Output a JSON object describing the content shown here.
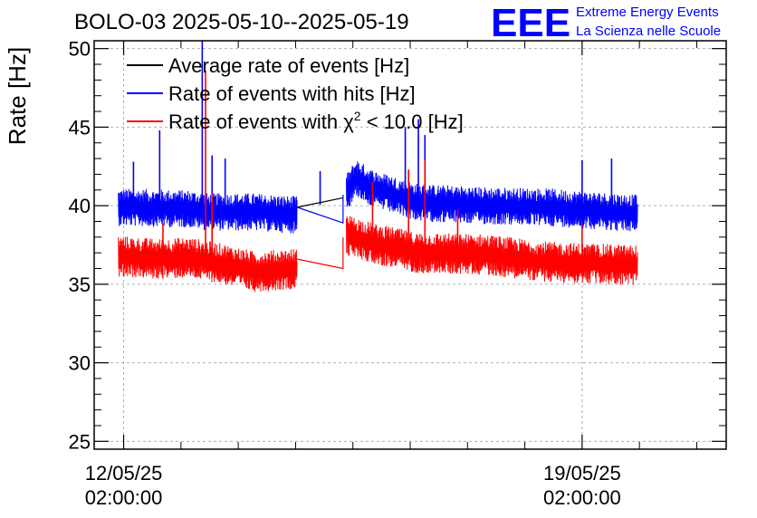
{
  "header": {
    "logo_text": "EEE",
    "org_line1": "Extreme Energy Events",
    "org_line2": "La Scienza nelle Scuole"
  },
  "colors": {
    "average": "#000000",
    "hits": "#0000ff",
    "chi2": "#ff0000",
    "logo": "#0000ff",
    "grid": "#b0b0b0"
  },
  "chart_data": {
    "type": "line",
    "title": "BOLO-03 2025-05-10--2025-05-19",
    "ylabel": "Rate [Hz]",
    "xlabel": "",
    "ylim": [
      24.5,
      50.5
    ],
    "xlim_days": [
      -0.45,
      9.2
    ],
    "yticks": [
      25,
      30,
      35,
      40,
      45,
      50
    ],
    "xticks": [
      {
        "day": 0,
        "line1": "12/05/25",
        "line2": "02:00:00"
      },
      {
        "day": 7,
        "line1": "19/05/25",
        "line2": "02:00:00"
      }
    ],
    "grid": true,
    "legend_position": "top-left",
    "legend": [
      {
        "key": "average",
        "label": "Average rate of events [Hz]"
      },
      {
        "key": "hits",
        "label": "Rate of events with hits [Hz]"
      },
      {
        "key": "chi2",
        "label_prefix": "Rate of events with ",
        "label_symbol": "χ",
        "label_sup": "2",
        "label_suffix": " < 10.0 [Hz]"
      }
    ],
    "data_start_day": -0.08,
    "data_end_day": 7.85,
    "gap_start_day": 2.65,
    "gap_end_day": 3.4,
    "series": [
      {
        "name": "Average rate of events [Hz]",
        "key": "average",
        "gap_path": [
          [
            2.65,
            39.9
          ],
          [
            3.35,
            40.5
          ]
        ]
      },
      {
        "name": "Rate of events with hits [Hz]",
        "key": "hits",
        "baseline": [
          [
            -0.08,
            39.9
          ],
          [
            1.0,
            39.8
          ],
          [
            1.3,
            39.6
          ],
          [
            2.0,
            39.6
          ],
          [
            2.65,
            39.4
          ],
          [
            3.4,
            40.8
          ],
          [
            3.55,
            41.8
          ],
          [
            3.8,
            41.1
          ],
          [
            4.5,
            40.2
          ],
          [
            5.5,
            40.0
          ],
          [
            6.5,
            39.9
          ],
          [
            7.85,
            39.5
          ]
        ],
        "noise": 1.2,
        "gap_path": [
          [
            2.65,
            39.9
          ],
          [
            3.35,
            38.9
          ],
          [
            3.35,
            40.7
          ]
        ],
        "spikes": [
          [
            0.55,
            44.8
          ],
          [
            1.2,
            50.5
          ],
          [
            1.35,
            43.2
          ],
          [
            4.3,
            45.0
          ],
          [
            4.5,
            45.5
          ],
          [
            4.6,
            44.5
          ],
          [
            1.55,
            43.0
          ],
          [
            0.15,
            42.8
          ],
          [
            7.45,
            43.0
          ],
          [
            7.0,
            42.9
          ],
          [
            3.0,
            42.2
          ]
        ]
      },
      {
        "name": "Rate of events with χ2 < 10.0 [Hz]",
        "key": "chi2",
        "baseline": [
          [
            -0.08,
            36.8
          ],
          [
            0.5,
            36.6
          ],
          [
            1.0,
            36.7
          ],
          [
            1.5,
            36.3
          ],
          [
            2.0,
            35.8
          ],
          [
            2.65,
            36.0
          ],
          [
            3.4,
            38.1
          ],
          [
            3.55,
            38.0
          ],
          [
            3.8,
            37.6
          ],
          [
            4.5,
            37.0
          ],
          [
            5.5,
            36.9
          ],
          [
            6.5,
            36.4
          ],
          [
            7.85,
            36.2
          ]
        ],
        "noise": 1.3,
        "gap_path": [
          [
            2.65,
            36.6
          ],
          [
            3.35,
            36.0
          ],
          [
            3.35,
            38.0
          ]
        ],
        "spikes": [
          [
            1.25,
            48.6
          ],
          [
            1.35,
            40.8
          ],
          [
            4.35,
            42.3
          ],
          [
            3.8,
            41.5
          ],
          [
            0.6,
            38.9
          ],
          [
            4.6,
            42.9
          ],
          [
            7.0,
            38.7
          ],
          [
            5.1,
            39.7
          ]
        ]
      }
    ]
  }
}
